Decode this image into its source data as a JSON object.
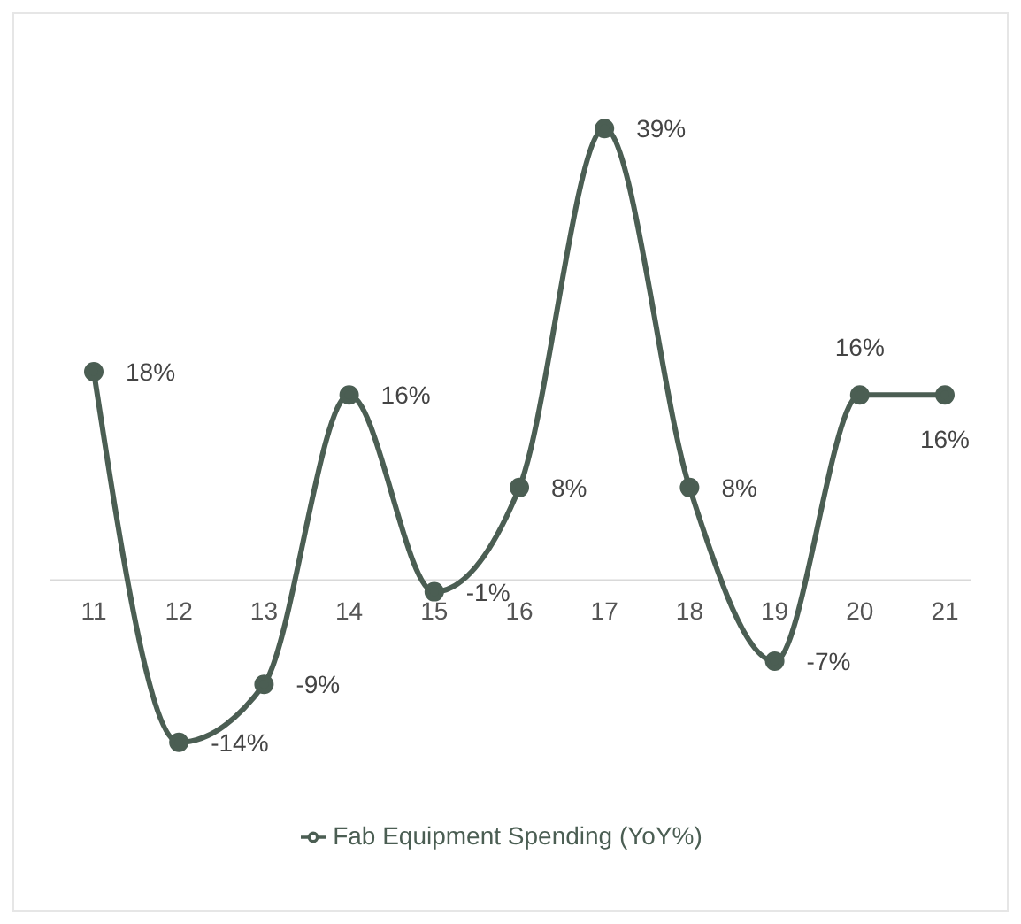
{
  "chart_data": {
    "type": "line",
    "categories": [
      "11",
      "12",
      "13",
      "14",
      "15",
      "16",
      "17",
      "18",
      "19",
      "20",
      "21"
    ],
    "series": [
      {
        "name": "Fab Equipment Spending (YoY%)",
        "color": "#4b5e53",
        "values": [
          18,
          -14,
          -9,
          16,
          -1,
          8,
          39,
          8,
          -7,
          16,
          16
        ],
        "value_labels": [
          "18%",
          "-14%",
          "-9%",
          "16%",
          "-1%",
          "8%",
          "39%",
          "8%",
          "-7%",
          "16%",
          "16%"
        ]
      }
    ],
    "marker": "circle",
    "line_style": "solid",
    "legend": "bottom",
    "grid": false
  }
}
